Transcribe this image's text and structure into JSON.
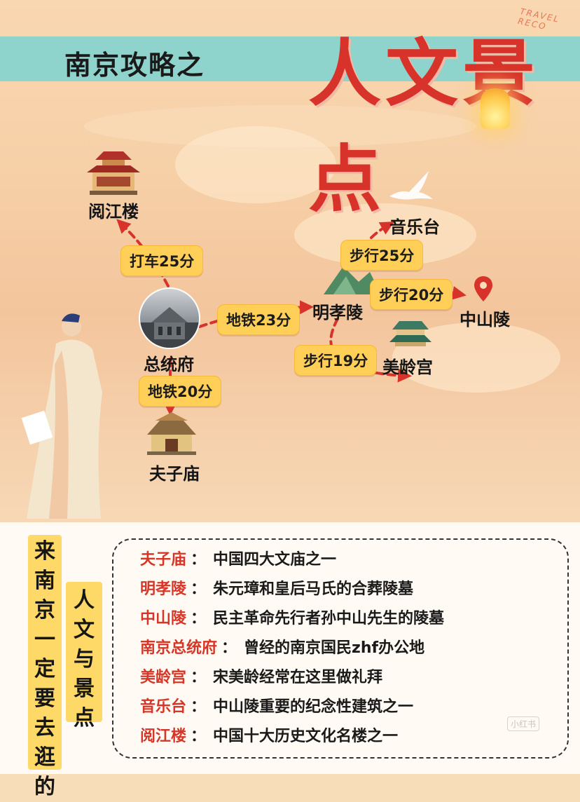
{
  "header": {
    "subtitle": "南京攻略之",
    "title": "人文景点",
    "tag": "TRAVEL RECO"
  },
  "map": {
    "places": {
      "yuejianglou": "阅江楼",
      "zongtongfu": "总统府",
      "fuzimiao": "夫子庙",
      "mingxiaoling": "明孝陵",
      "yinyuetai": "音乐台",
      "zhongshanling": "中山陵",
      "meilinggong": "美龄宫"
    },
    "routes": {
      "taxi_25": "打车25分",
      "metro_23": "地铁23分",
      "metro_20": "地铁20分",
      "walk_25": "步行25分",
      "walk_20": "步行20分",
      "walk_19": "步行19分"
    }
  },
  "colors": {
    "accent_red": "#d8332a",
    "pill_yellow": "#ffcf58",
    "band_teal": "#8fd4cc",
    "route_red": "#d8332a"
  },
  "icons": [
    "pavilion-icon",
    "temple-icon",
    "mountain-icon",
    "palace-icon",
    "location-pin-icon",
    "dove-icon",
    "lantern-icon"
  ],
  "sidebar": {
    "vertical_main": "来南京一定要去逛的",
    "vertical_sub": "人文与景点"
  },
  "info": [
    {
      "name": "夫子庙",
      "sep": "：",
      "desc": "中国四大文庙之一"
    },
    {
      "name": "明孝陵",
      "sep": "：",
      "desc": "朱元璋和皇后马氏的合葬陵墓"
    },
    {
      "name": "中山陵",
      "sep": "：",
      "desc": "民主革命先行者孙中山先生的陵墓"
    },
    {
      "name": "南京总统府",
      "sep": "：",
      "desc": "曾经的南京国民zhf办公地"
    },
    {
      "name": "美龄宫",
      "sep": "：",
      "desc": "宋美龄经常在这里做礼拜"
    },
    {
      "name": "音乐台",
      "sep": "：",
      "desc": "中山陵重要的纪念性建筑之一"
    },
    {
      "name": "阅江楼",
      "sep": "：",
      "desc": "中国十大历史文化名楼之一"
    }
  ],
  "watermark": "小红书"
}
